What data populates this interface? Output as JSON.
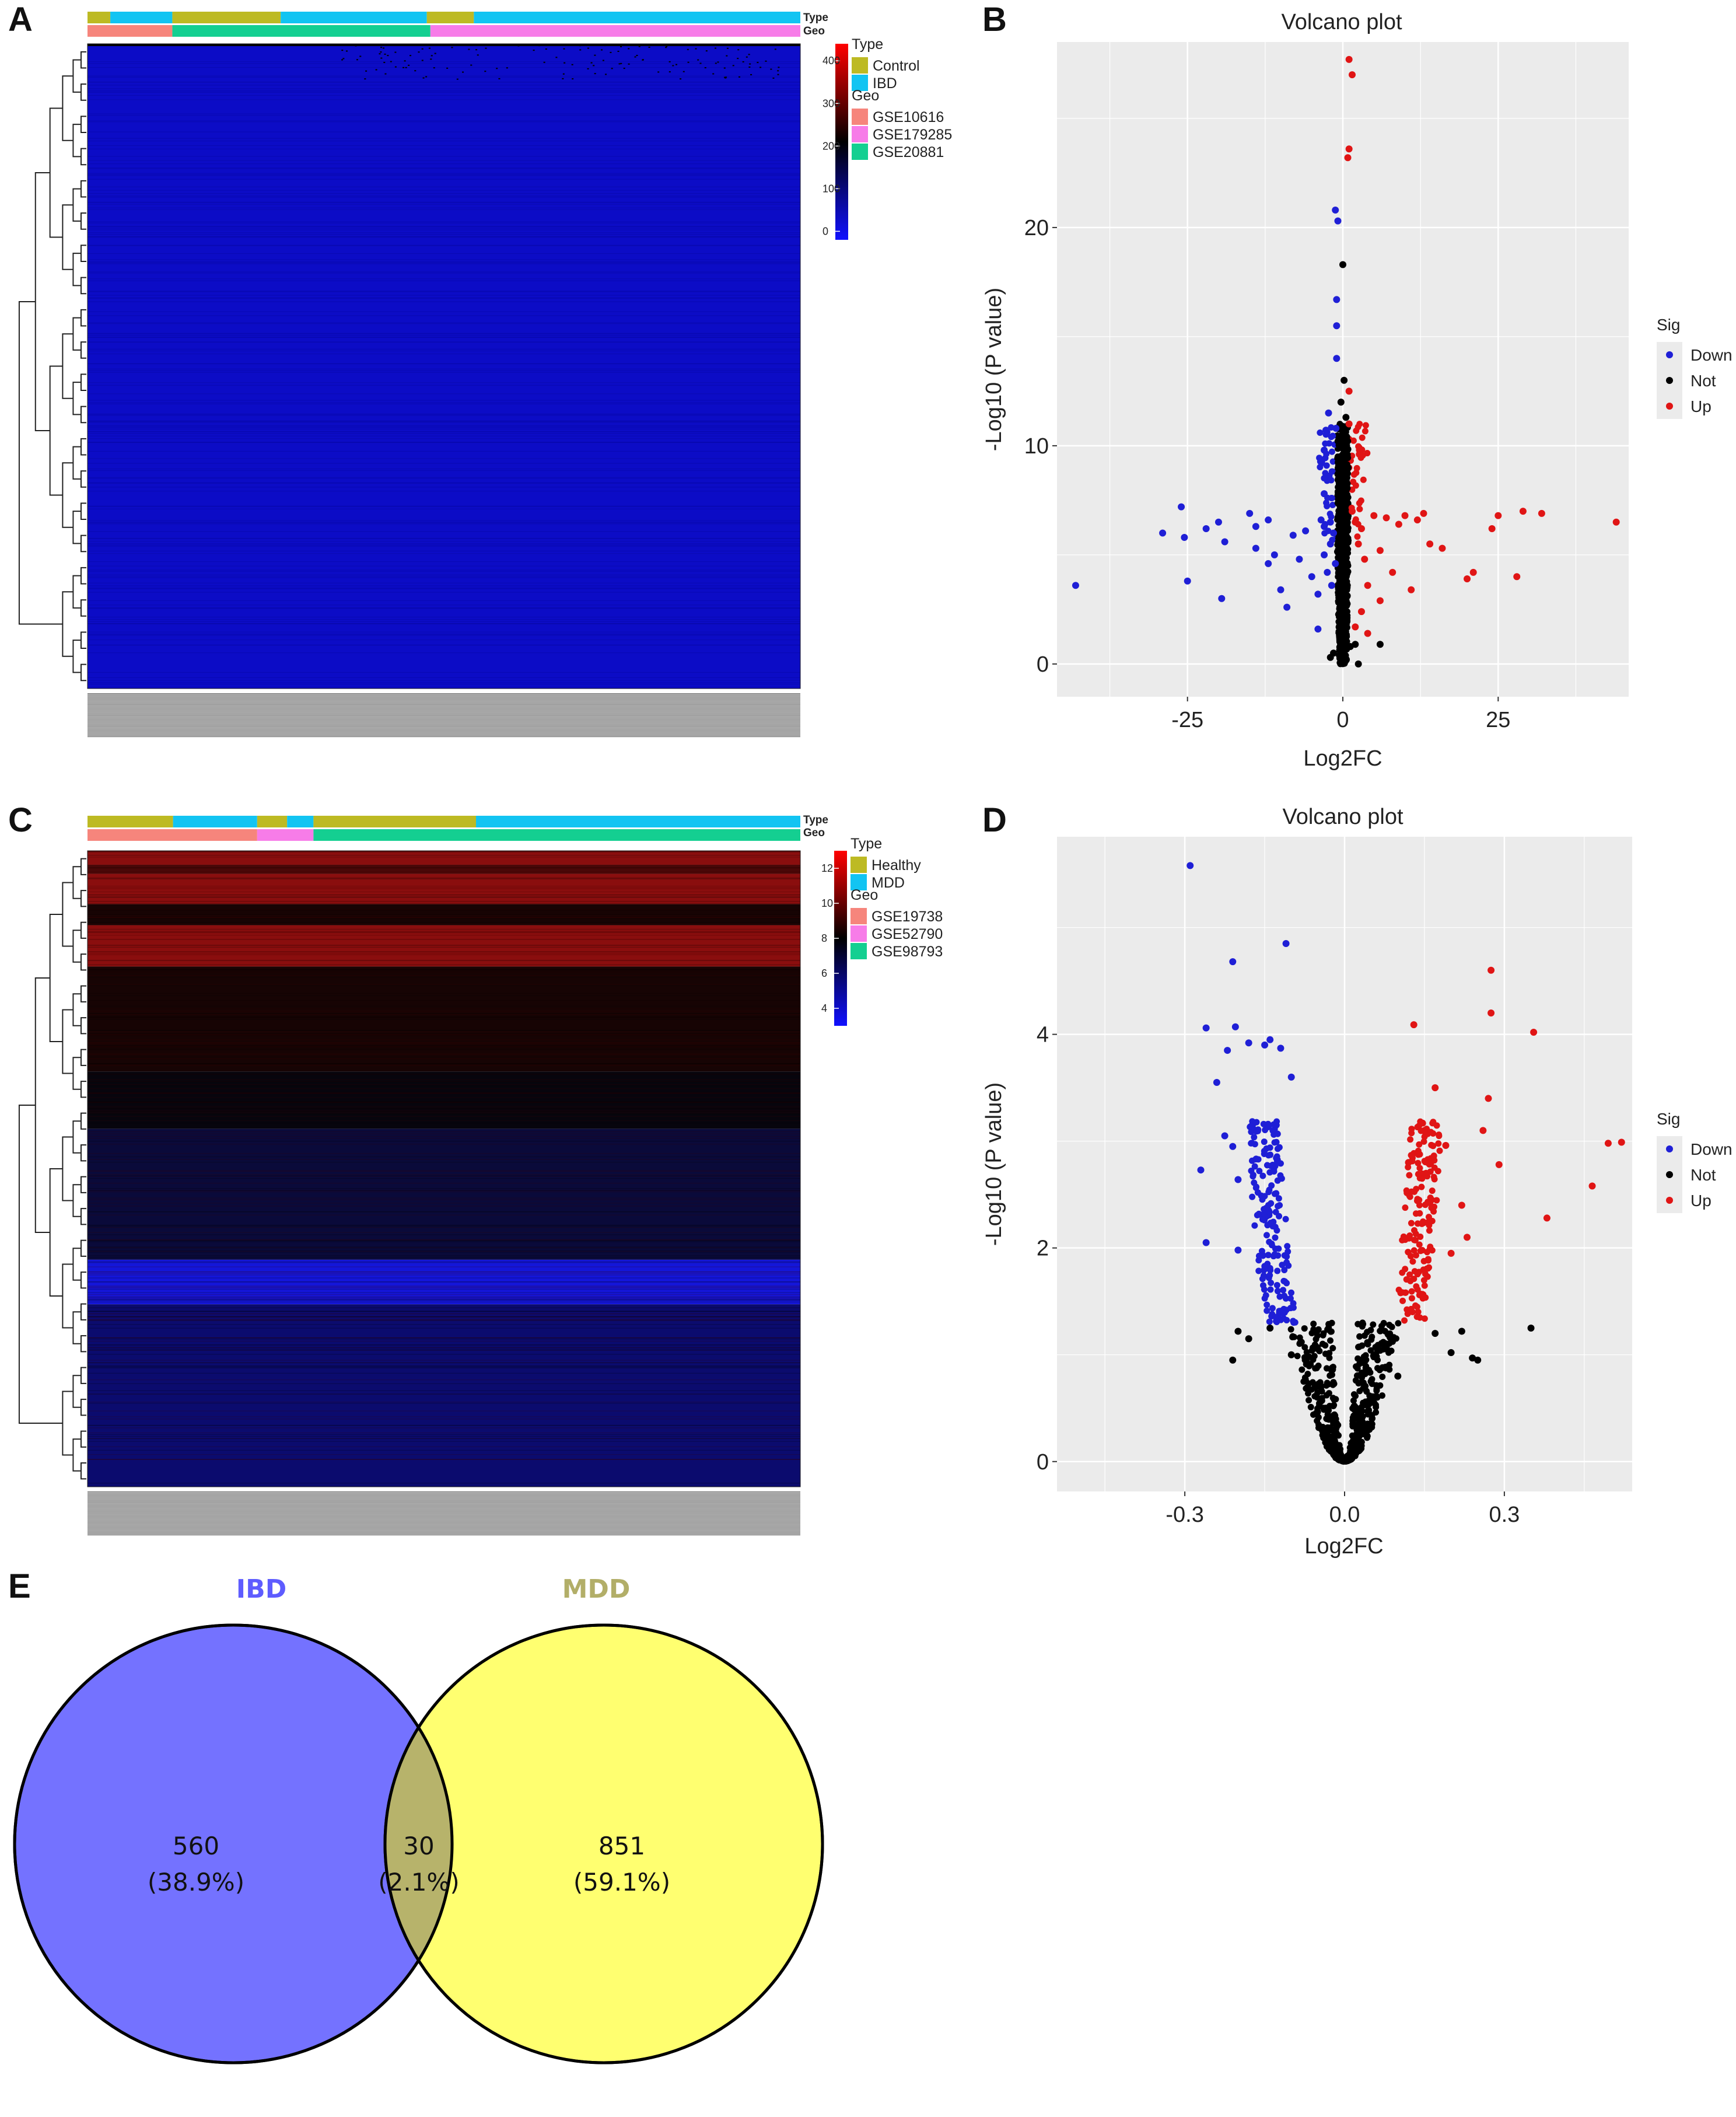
{
  "panels": {
    "a": "A",
    "b": "B",
    "c": "C",
    "d": "D",
    "e": "E"
  },
  "colors": {
    "control": "#BDBA23",
    "ibd": "#12C4F2",
    "gse10616": "#F6857C",
    "gse179285": "#F77CE8",
    "gse20881": "#14CF91",
    "healthy": "#BDBA23",
    "mdd": "#12C4F2",
    "gse19738": "#F6857C",
    "gse52790": "#F77CE8",
    "gse98793": "#14CF91",
    "down": "#1F1FD6",
    "not": "#000000",
    "up": "#E01515",
    "panel_bg": "#EBEBEB",
    "venn_ibd": "#7472FF",
    "venn_mdd": "#FFFF70",
    "venn_overlap": "#B7B36B",
    "venn_ibd_label": "#5E5CFF",
    "venn_mdd_label": "#B2AE68"
  },
  "chart_data": [
    {
      "type": "heatmap",
      "panel": "A",
      "annotation_labels": {
        "type": "Type",
        "geo": "Geo"
      },
      "legend": {
        "type_title": "Type",
        "type_items": [
          "Control",
          "IBD"
        ],
        "geo_title": "Geo",
        "geo_items": [
          "GSE10616",
          "GSE179285",
          "GSE20881"
        ],
        "scale_ticks": [
          "400",
          "300",
          "200",
          "100",
          "0"
        ],
        "range": [
          -20,
          440
        ]
      },
      "type_bar": [
        [
          "Control",
          0.032
        ],
        [
          "IBD",
          0.087
        ],
        [
          "Control",
          0.152
        ],
        [
          "IBD",
          0.205
        ],
        [
          "Control",
          0.066
        ],
        [
          "IBD",
          0.458
        ]
      ],
      "geo_bar": [
        [
          "GSE10616",
          0.119
        ],
        [
          "GSE20881",
          0.362
        ],
        [
          "GSE179285",
          0.519
        ]
      ],
      "pattern": "mostly low values (blue) with sparse black entries in the upper rows"
    },
    {
      "type": "scatter",
      "panel": "B",
      "title": "Volcano plot",
      "xlabel": "Log2FC",
      "ylabel": "-Log10 (P value)",
      "xlim": [
        -46,
        46
      ],
      "ylim": [
        -1.5,
        28.5
      ],
      "xticks": [
        -25,
        0,
        25
      ],
      "yticks": [
        0,
        10,
        20
      ],
      "legend_title": "Sig",
      "series": [
        {
          "name": "Down",
          "points": [
            [
              -43,
              3.6
            ],
            [
              -29,
              6.0
            ],
            [
              -26,
              7.2
            ],
            [
              -25.5,
              5.8
            ],
            [
              -25,
              3.8
            ],
            [
              -22,
              6.2
            ],
            [
              -20,
              6.5
            ],
            [
              -19.5,
              3.0
            ],
            [
              -19,
              5.6
            ],
            [
              -15,
              6.9
            ],
            [
              -14,
              6.3
            ],
            [
              -14,
              5.3
            ],
            [
              -12,
              6.6
            ],
            [
              -12,
              4.6
            ],
            [
              -11,
              5.0
            ],
            [
              -10,
              3.4
            ],
            [
              -9,
              2.6
            ],
            [
              -8,
              5.9
            ],
            [
              -7,
              4.8
            ],
            [
              -6,
              6.1
            ],
            [
              -5,
              4.0
            ],
            [
              -4,
              3.2
            ],
            [
              -4,
              1.6
            ],
            [
              -3.5,
              6.6
            ],
            [
              -3,
              7.8
            ],
            [
              -3,
              6.3
            ],
            [
              -3,
              5.0
            ],
            [
              -2.5,
              4.2
            ],
            [
              -2,
              5.5
            ],
            [
              -2,
              6.5
            ],
            [
              -1.8,
              3.6
            ],
            [
              -1.5,
              6.0
            ],
            [
              -1.2,
              4.6
            ],
            [
              -1,
              15.5
            ],
            [
              -1,
              14.0
            ],
            [
              -1,
              16.7
            ],
            [
              -1.2,
              20.8
            ],
            [
              -0.8,
              20.3
            ],
            [
              -1.1,
              10.8
            ],
            [
              -2.3,
              11.5
            ],
            [
              -3,
              9.8
            ]
          ]
        },
        {
          "name": "Not",
          "points": [
            [
              0,
              18.3
            ],
            [
              0.2,
              13.0
            ],
            [
              -0.3,
              12.0
            ],
            [
              0.5,
              11.3
            ],
            [
              0,
              9.0
            ],
            [
              -0.5,
              8.0
            ],
            [
              0.3,
              7.0
            ],
            [
              0,
              6.0
            ],
            [
              0,
              5.0
            ],
            [
              0,
              4.0
            ],
            [
              0.2,
              3.0
            ],
            [
              0,
              2.0
            ],
            [
              -0.5,
              1.2
            ],
            [
              0.5,
              0.8
            ],
            [
              0,
              0.3
            ],
            [
              1.2,
              0.8
            ],
            [
              -1.5,
              0.5
            ],
            [
              2,
              0.9
            ],
            [
              6,
              0.9
            ],
            [
              -2,
              0.3
            ],
            [
              2.5,
              0.0
            ]
          ]
        },
        {
          "name": "Up",
          "points": [
            [
              1,
              27.7
            ],
            [
              1.5,
              27.0
            ],
            [
              1,
              23.6
            ],
            [
              0.8,
              23.2
            ],
            [
              1,
              12.5
            ],
            [
              1,
              11.0
            ],
            [
              1.5,
              7.0
            ],
            [
              2,
              6.5
            ],
            [
              2.5,
              5.5
            ],
            [
              3,
              6.2
            ],
            [
              3.5,
              4.8
            ],
            [
              4,
              3.6
            ],
            [
              5,
              6.8
            ],
            [
              6,
              5.2
            ],
            [
              7,
              6.7
            ],
            [
              8,
              4.2
            ],
            [
              9,
              6.4
            ],
            [
              10,
              6.8
            ],
            [
              11,
              3.4
            ],
            [
              12,
              6.6
            ],
            [
              13,
              6.9
            ],
            [
              14,
              5.5
            ],
            [
              16,
              5.3
            ],
            [
              20,
              3.9
            ],
            [
              21,
              4.2
            ],
            [
              24,
              6.2
            ],
            [
              25,
              6.8
            ],
            [
              28,
              4.0
            ],
            [
              29,
              7.0
            ],
            [
              32,
              6.9
            ],
            [
              44,
              6.5
            ],
            [
              3,
              2.4
            ],
            [
              2,
              1.7
            ],
            [
              6,
              2.9
            ],
            [
              4,
              1.4
            ]
          ]
        }
      ]
    },
    {
      "type": "heatmap",
      "panel": "C",
      "annotation_labels": {
        "type": "Type",
        "geo": "Geo"
      },
      "legend": {
        "type_title": "Type",
        "type_items": [
          "Healthy",
          "MDD"
        ],
        "geo_title": "Geo",
        "geo_items": [
          "GSE19738",
          "GSE52790",
          "GSE98793"
        ],
        "scale_ticks": [
          "12",
          "10",
          "8",
          "6",
          "4"
        ],
        "range": [
          3,
          13
        ]
      },
      "type_bar": [
        [
          "Healthy",
          0.12
        ],
        [
          "MDD",
          0.118
        ],
        [
          "Healthy",
          0.042
        ],
        [
          "MDD",
          0.037
        ],
        [
          "Healthy",
          0.228
        ],
        [
          "MDD",
          0.455
        ]
      ],
      "geo_bar": [
        [
          "GSE19738",
          0.238
        ],
        [
          "GSE52790",
          0.079
        ],
        [
          "GSE98793",
          0.683
        ]
      ],
      "row_bands": [
        {
          "level": "high",
          "fraction": 0.022
        },
        {
          "level": "mid-high",
          "fraction": 0.014
        },
        {
          "level": "high",
          "fraction": 0.048
        },
        {
          "level": "mid",
          "fraction": 0.033
        },
        {
          "level": "high",
          "fraction": 0.065
        },
        {
          "level": "mid",
          "fraction": 0.165
        },
        {
          "level": "mid-low",
          "fraction": 0.09
        },
        {
          "level": "low-mid",
          "fraction": 0.206
        },
        {
          "level": "lowest",
          "fraction": 0.07
        },
        {
          "level": "low",
          "fraction": 0.287
        }
      ]
    },
    {
      "type": "scatter",
      "panel": "D",
      "title": "Volcano plot",
      "xlabel": "Log2FC",
      "ylabel": "-Log10 (P value)",
      "xlim": [
        -0.54,
        0.54
      ],
      "ylim": [
        -0.28,
        5.85
      ],
      "xticks": [
        -0.3,
        0.0,
        0.3
      ],
      "xtick_labels": [
        "-0.3",
        "0.0",
        "0.3"
      ],
      "yticks": [
        0,
        2,
        4
      ],
      "legend_title": "Sig",
      "series": [
        {
          "name": "Down",
          "points": [
            [
              -0.29,
              5.58
            ],
            [
              -0.26,
              4.06
            ],
            [
              -0.21,
              4.68
            ],
            [
              -0.205,
              4.07
            ],
            [
              -0.18,
              3.92
            ],
            [
              -0.15,
              3.9
            ],
            [
              -0.14,
              3.95
            ],
            [
              -0.22,
              3.85
            ],
            [
              -0.24,
              3.55
            ],
            [
              -0.225,
              3.05
            ],
            [
              -0.27,
              2.73
            ],
            [
              -0.21,
              2.95
            ],
            [
              -0.2,
              2.64
            ],
            [
              -0.26,
              2.05
            ],
            [
              -0.2,
              1.98
            ],
            [
              -0.12,
              3.87
            ],
            [
              -0.11,
              4.85
            ],
            [
              -0.1,
              3.6
            ]
          ]
        },
        {
          "name": "Not",
          "points": [
            [
              -0.2,
              1.22
            ],
            [
              -0.21,
              0.95
            ],
            [
              -0.18,
              1.15
            ],
            [
              -0.14,
              1.25
            ],
            [
              0.17,
              1.2
            ],
            [
              0.2,
              1.02
            ],
            [
              0.24,
              0.97
            ],
            [
              0.25,
              0.95
            ],
            [
              0.35,
              1.25
            ],
            [
              0.22,
              1.22
            ],
            [
              -0.1,
              1.0
            ],
            [
              0.1,
              0.8
            ]
          ]
        },
        {
          "name": "Up",
          "points": [
            [
              0.275,
              4.6
            ],
            [
              0.275,
              4.2
            ],
            [
              0.355,
              4.02
            ],
            [
              0.27,
              3.4
            ],
            [
              0.29,
              2.78
            ],
            [
              0.26,
              3.1
            ],
            [
              0.38,
              2.28
            ],
            [
              0.465,
              2.58
            ],
            [
              0.495,
              2.98
            ],
            [
              0.52,
              2.99
            ],
            [
              0.13,
              4.09
            ],
            [
              0.17,
              3.5
            ],
            [
              0.15,
              3.1
            ],
            [
              0.12,
              2.8
            ],
            [
              0.19,
              2.96
            ],
            [
              0.22,
              2.4
            ],
            [
              0.23,
              2.1
            ],
            [
              0.2,
              1.95
            ]
          ]
        }
      ]
    },
    {
      "type": "venn",
      "panel": "E",
      "sets": [
        {
          "label": "IBD",
          "only_count": "560",
          "only_pct": "(38.9%)"
        },
        {
          "label": "MDD",
          "only_count": "851",
          "only_pct": "(59.1%)"
        }
      ],
      "overlap": {
        "count": "30",
        "pct": "(2.1%)"
      }
    }
  ]
}
